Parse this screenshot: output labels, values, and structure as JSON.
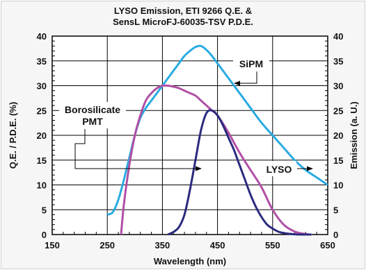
{
  "chart_data": {
    "type": "line",
    "title": [
      "LYSO Emission, ETI 9266 Q.E. &",
      "SensL MicroFJ-60035-TSV P.D.E."
    ],
    "xlabel": "Wavelength (nm)",
    "ylabel_left": "Q.E. / P.D.E. (%)",
    "ylabel_right": "Emission (a. U.)",
    "xlim": [
      150,
      650
    ],
    "ylim": [
      0,
      40
    ],
    "x_ticks": [
      "150",
      "250",
      "350",
      "450",
      "550",
      "650"
    ],
    "y_ticks": [
      "0",
      "5",
      "10",
      "15",
      "20",
      "25",
      "30",
      "35",
      "40"
    ],
    "grid": true,
    "legend": "annotations on plot",
    "series": [
      {
        "name": "SiPM",
        "color": "#29abe2",
        "x": [
          250,
          260,
          270,
          280,
          290,
          300,
          310,
          320,
          330,
          340,
          350,
          360,
          370,
          380,
          390,
          400,
          410,
          420,
          430,
          440,
          450,
          470,
          490,
          510,
          530,
          550,
          570,
          590,
          610,
          630,
          650
        ],
        "y": [
          4,
          4.5,
          7,
          11,
          15.5,
          20,
          23.5,
          25.5,
          27,
          28.5,
          30,
          31.5,
          33,
          34.5,
          36,
          37,
          37.8,
          38,
          37.2,
          36,
          34.5,
          31.5,
          28.5,
          25.5,
          22.5,
          20,
          17.5,
          15,
          13,
          11.5,
          10
        ]
      },
      {
        "name": "Borosilicate PMT",
        "color": "#b04fa5",
        "x": [
          275,
          280,
          290,
          300,
          310,
          320,
          330,
          340,
          350,
          360,
          370,
          380,
          390,
          400,
          410,
          420,
          430,
          440,
          450,
          470,
          490,
          510,
          530,
          550,
          570,
          590,
          610,
          620
        ],
        "y": [
          0,
          6,
          14,
          20,
          24,
          27,
          28.5,
          29.5,
          30,
          30,
          29.8,
          29.5,
          29,
          28.5,
          28,
          27,
          26,
          25,
          24,
          20.5,
          16.5,
          13,
          9.5,
          5,
          2,
          0.6,
          0.1,
          0
        ]
      },
      {
        "name": "LYSO",
        "color": "#2a2a7e",
        "x": [
          360,
          370,
          380,
          390,
          400,
          410,
          420,
          430,
          440,
          450,
          460,
          470,
          480,
          490,
          500,
          510,
          520,
          530,
          540,
          550,
          560,
          570,
          580,
          590,
          600,
          620
        ],
        "y": [
          0,
          0.5,
          1.5,
          4,
          9,
          15,
          21,
          24.5,
          25,
          24,
          22,
          19.5,
          17,
          14,
          11,
          8,
          5.5,
          3.5,
          2,
          1.2,
          0.6,
          0.3,
          0.15,
          0.05,
          0,
          0
        ]
      }
    ],
    "annotations": [
      "SiPM",
      "Borosilicate",
      "PMT",
      "LYSO"
    ]
  }
}
